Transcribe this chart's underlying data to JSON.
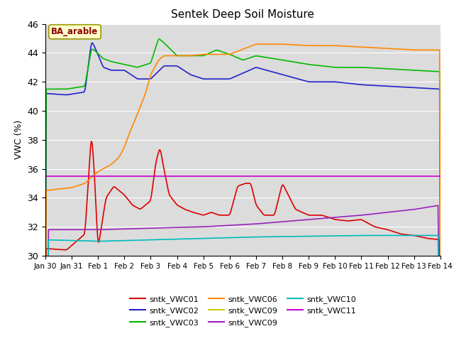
{
  "title": "Sentek Deep Soil Moisture",
  "ylabel": "VWC (%)",
  "annotation": "BA_arable",
  "ylim": [
    30,
    46
  ],
  "background_color": "#dcdcdc",
  "legend_entries": [
    "sntk_VWC01",
    "sntk_VWC02",
    "sntk_VWC03",
    "sntk_VWC06",
    "sntk_VWC09",
    "sntk_VWC09",
    "sntk_VWC10",
    "sntk_VWC11"
  ],
  "line_colors": [
    "#dd0000",
    "#2222cc",
    "#00bb00",
    "#ff8800",
    "#cccc00",
    "#9922bb",
    "#00bbbb",
    "#cc00cc"
  ],
  "x_tick_labels": [
    "Jan 30",
    "Jan 31",
    "Feb 1",
    "Feb 2",
    "Feb 3",
    "Feb 4",
    "Feb 5",
    "Feb 6",
    "Feb 7",
    "Feb 8",
    "Feb 9",
    "Feb 10",
    "Feb 11",
    "Feb 12",
    "Feb 13",
    "Feb 14"
  ]
}
